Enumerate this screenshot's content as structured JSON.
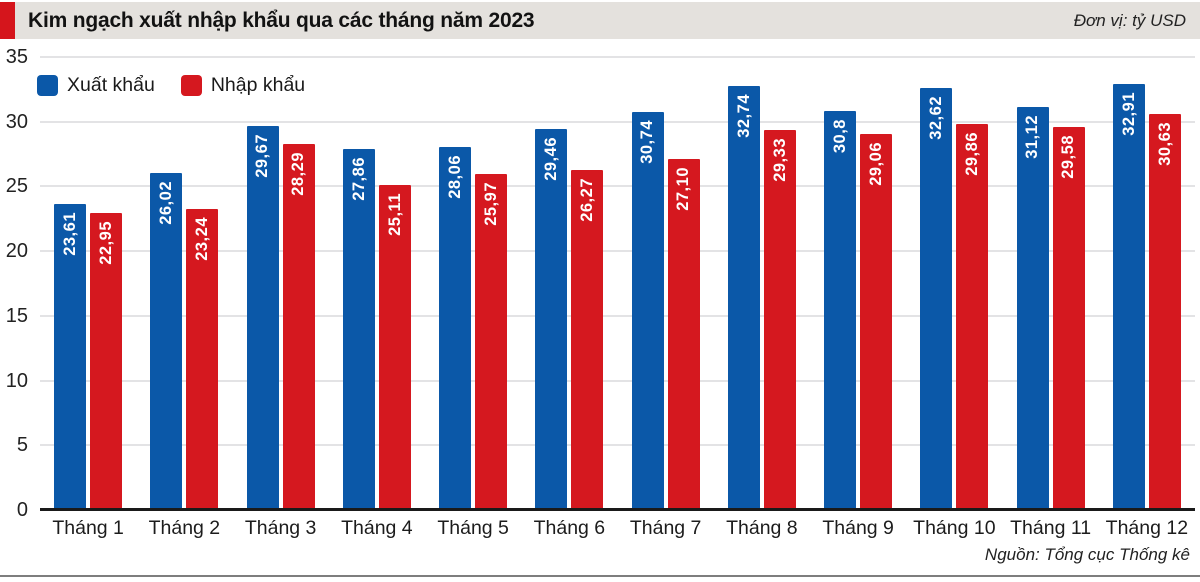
{
  "header": {
    "title": "Kim ngạch xuất nhập khẩu qua các tháng năm 2023",
    "unit": "Đơn vị: tỷ USD"
  },
  "legend": [
    {
      "label": "Xuất khẩu",
      "color": "#0b58a8"
    },
    {
      "label": "Nhập khẩu",
      "color": "#d5181f"
    }
  ],
  "footer": {
    "source": "Nguồn: Tổng cục Thống kê"
  },
  "colors": {
    "export_bar": "#0b58a8",
    "import_bar": "#d5181f",
    "header_accent": "#d5151c",
    "header_background": "#e4e1dd",
    "gridline": "#c7c7cb",
    "axis": "#1a1a1a"
  },
  "chart_data": {
    "type": "bar",
    "title": "Kim ngạch xuất nhập khẩu qua các tháng năm 2023",
    "unit": "tỷ USD",
    "categories": [
      "Tháng 1",
      "Tháng 2",
      "Tháng 3",
      "Tháng 4",
      "Tháng 5",
      "Tháng 6",
      "Tháng 7",
      "Tháng 8",
      "Tháng 9",
      "Tháng 10",
      "Tháng 11",
      "Tháng 12"
    ],
    "series": [
      {
        "name": "Xuất khẩu",
        "color": "#0b58a8",
        "values": [
          23.61,
          26.02,
          29.67,
          27.86,
          28.06,
          29.46,
          30.74,
          32.74,
          30.8,
          32.62,
          31.12,
          32.91
        ],
        "labels": [
          "23,61",
          "26,02",
          "29,67",
          "27,86",
          "28,06",
          "29,46",
          "30,74",
          "32,74",
          "30,8",
          "32,62",
          "31,12",
          "32,91"
        ]
      },
      {
        "name": "Nhập khẩu",
        "color": "#d5181f",
        "values": [
          22.95,
          23.24,
          28.29,
          25.11,
          25.97,
          26.27,
          27.1,
          29.33,
          29.06,
          29.86,
          29.58,
          30.63
        ],
        "labels": [
          "22,95",
          "23,24",
          "28,29",
          "25,11",
          "25,97",
          "26,27",
          "27,10",
          "29,33",
          "29,06",
          "29,86",
          "29,58",
          "30,63"
        ]
      }
    ],
    "ylim": [
      0,
      35
    ],
    "yticks": [
      0,
      5,
      10,
      15,
      20,
      25,
      30,
      35
    ],
    "grid": true,
    "legend_position": "top-left",
    "value_labels": "vertical white text anchored at top inside each bar"
  }
}
